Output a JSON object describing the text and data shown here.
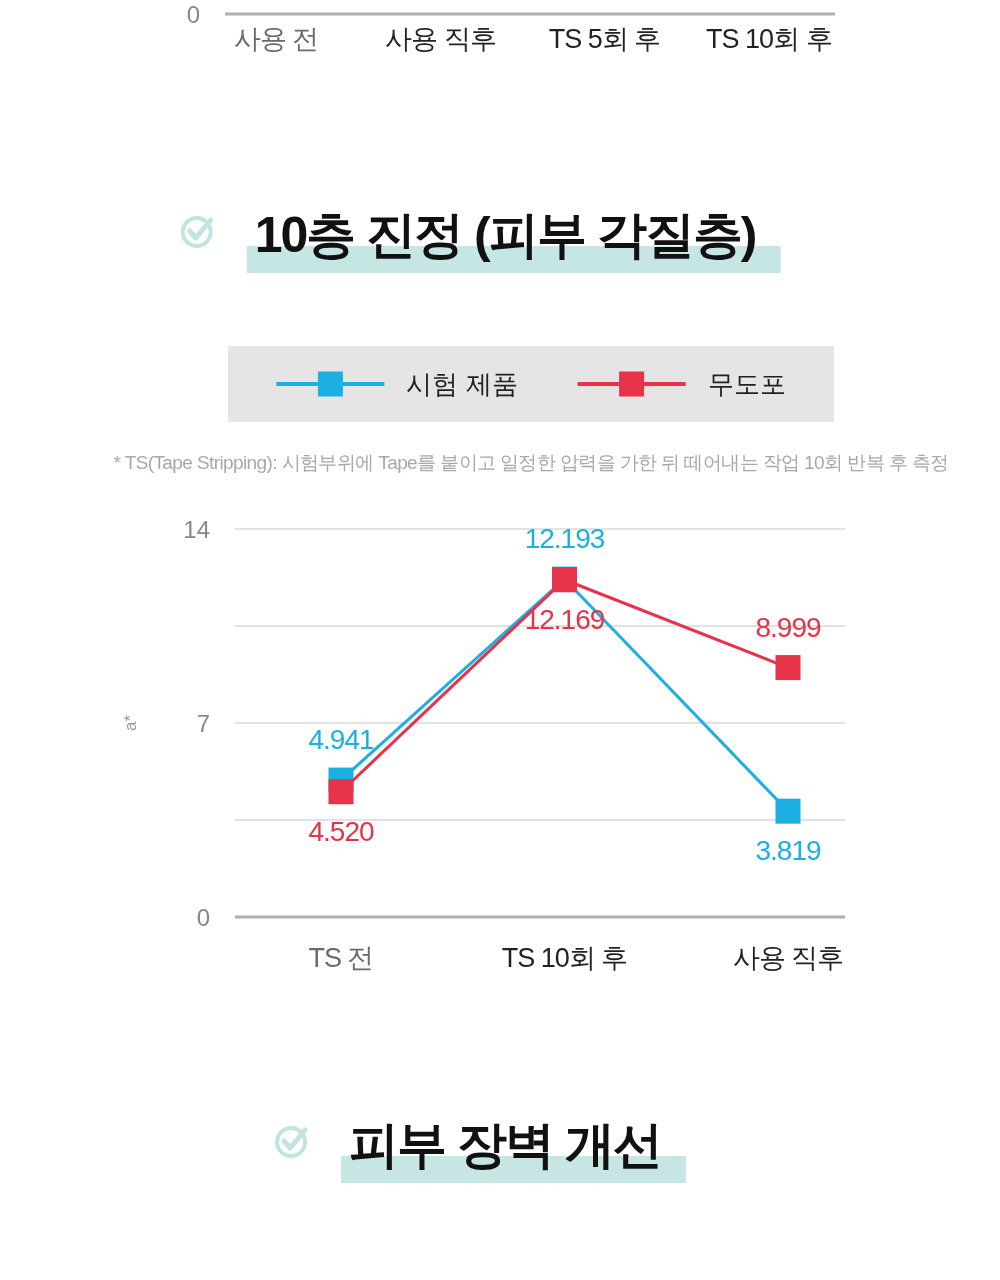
{
  "chart_data": [
    {
      "type": "other",
      "categories": [
        "사용 전",
        "사용 직후",
        "TS 5회 후",
        "TS 10회 후"
      ],
      "annotations": [
        "0"
      ]
    },
    {
      "type": "line",
      "title": "10층 진정 (피부 각질층)",
      "ylabel": "a*",
      "annotations": [
        "* TS(Tape Stripping): 시험부위에 Tape를 붙이고 일정한 압력을 가한 뒤 떼어내는 작업 10회 반복 후 측정"
      ],
      "categories": [
        "TS 전",
        "TS 10회 후",
        "사용 직후"
      ],
      "series": [
        {
          "name": "시험 제품",
          "color": "#1cb0e2",
          "values": [
            4.941,
            12.193,
            3.819
          ],
          "value_labels": [
            "4.941",
            "12.193",
            "3.819"
          ]
        },
        {
          "name": "무도포",
          "color": "#e6334a",
          "values": [
            4.52,
            12.169,
            8.999
          ],
          "value_labels": [
            "4.520",
            "12.169",
            "8.999"
          ]
        }
      ],
      "ylim": [
        0,
        14
      ],
      "yticks": [
        0,
        {
          "value": 3.5,
          "label": null
        },
        7,
        {
          "value": 10.5,
          "label": null
        },
        14
      ],
      "grid": "y",
      "legend": "top",
      "marker": "square",
      "line_style": "solid"
    },
    {
      "type": "other",
      "title": "피부 장벽 개선"
    }
  ]
}
